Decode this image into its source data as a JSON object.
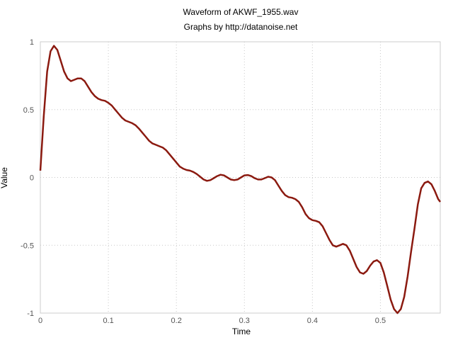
{
  "chart_data": {
    "type": "line",
    "title": "Waveform of AKWF_1955.wav",
    "subtitle": "Graphs by http://datanoise.net",
    "xlabel": "Time",
    "ylabel": "Value",
    "xlim": [
      0,
      0.588
    ],
    "ylim": [
      -1,
      1
    ],
    "x_ticks": [
      0,
      0.1,
      0.2,
      0.3,
      0.4,
      0.5
    ],
    "x_tick_labels": [
      "0",
      "0.1",
      "0.2",
      "0.3",
      "0.4",
      "0.5"
    ],
    "y_ticks": [
      1,
      0.5,
      0,
      -0.5,
      -1
    ],
    "y_tick_labels": [
      "1",
      "0.5",
      "0",
      "-0.5",
      "-1"
    ],
    "grid": true,
    "line_color": "#8b1a10",
    "series": [
      {
        "values": [
          [
            0,
            0.05
          ],
          [
            0.005,
            0.45
          ],
          [
            0.01,
            0.78
          ],
          [
            0.015,
            0.93
          ],
          [
            0.02,
            0.97
          ],
          [
            0.025,
            0.94
          ],
          [
            0.03,
            0.86
          ],
          [
            0.035,
            0.78
          ],
          [
            0.04,
            0.73
          ],
          [
            0.045,
            0.71
          ],
          [
            0.05,
            0.72
          ],
          [
            0.055,
            0.73
          ],
          [
            0.06,
            0.73
          ],
          [
            0.065,
            0.71
          ],
          [
            0.07,
            0.67
          ],
          [
            0.075,
            0.63
          ],
          [
            0.08,
            0.6
          ],
          [
            0.085,
            0.58
          ],
          [
            0.09,
            0.57
          ],
          [
            0.095,
            0.565
          ],
          [
            0.1,
            0.55
          ],
          [
            0.105,
            0.53
          ],
          [
            0.11,
            0.5
          ],
          [
            0.115,
            0.47
          ],
          [
            0.12,
            0.44
          ],
          [
            0.125,
            0.42
          ],
          [
            0.13,
            0.41
          ],
          [
            0.135,
            0.4
          ],
          [
            0.14,
            0.385
          ],
          [
            0.145,
            0.36
          ],
          [
            0.15,
            0.33
          ],
          [
            0.155,
            0.3
          ],
          [
            0.16,
            0.27
          ],
          [
            0.165,
            0.25
          ],
          [
            0.17,
            0.24
          ],
          [
            0.175,
            0.23
          ],
          [
            0.18,
            0.22
          ],
          [
            0.185,
            0.2
          ],
          [
            0.19,
            0.17
          ],
          [
            0.195,
            0.14
          ],
          [
            0.2,
            0.11
          ],
          [
            0.205,
            0.08
          ],
          [
            0.21,
            0.065
          ],
          [
            0.215,
            0.055
          ],
          [
            0.22,
            0.05
          ],
          [
            0.225,
            0.04
          ],
          [
            0.23,
            0.025
          ],
          [
            0.235,
            0.005
          ],
          [
            0.24,
            -0.015
          ],
          [
            0.245,
            -0.025
          ],
          [
            0.25,
            -0.02
          ],
          [
            0.255,
            -0.005
          ],
          [
            0.26,
            0.01
          ],
          [
            0.265,
            0.02
          ],
          [
            0.27,
            0.015
          ],
          [
            0.275,
            0.0
          ],
          [
            0.28,
            -0.015
          ],
          [
            0.285,
            -0.02
          ],
          [
            0.29,
            -0.015
          ],
          [
            0.295,
            0.0
          ],
          [
            0.3,
            0.015
          ],
          [
            0.305,
            0.018
          ],
          [
            0.31,
            0.01
          ],
          [
            0.315,
            -0.005
          ],
          [
            0.32,
            -0.015
          ],
          [
            0.325,
            -0.015
          ],
          [
            0.33,
            -0.005
          ],
          [
            0.335,
            0.005
          ],
          [
            0.34,
            0.0
          ],
          [
            0.345,
            -0.02
          ],
          [
            0.35,
            -0.06
          ],
          [
            0.355,
            -0.1
          ],
          [
            0.36,
            -0.13
          ],
          [
            0.365,
            -0.145
          ],
          [
            0.37,
            -0.15
          ],
          [
            0.375,
            -0.16
          ],
          [
            0.38,
            -0.18
          ],
          [
            0.385,
            -0.22
          ],
          [
            0.39,
            -0.27
          ],
          [
            0.395,
            -0.3
          ],
          [
            0.4,
            -0.315
          ],
          [
            0.405,
            -0.32
          ],
          [
            0.41,
            -0.33
          ],
          [
            0.415,
            -0.36
          ],
          [
            0.42,
            -0.41
          ],
          [
            0.425,
            -0.46
          ],
          [
            0.43,
            -0.5
          ],
          [
            0.435,
            -0.51
          ],
          [
            0.44,
            -0.5
          ],
          [
            0.445,
            -0.49
          ],
          [
            0.45,
            -0.5
          ],
          [
            0.455,
            -0.54
          ],
          [
            0.46,
            -0.6
          ],
          [
            0.465,
            -0.66
          ],
          [
            0.47,
            -0.7
          ],
          [
            0.475,
            -0.71
          ],
          [
            0.48,
            -0.69
          ],
          [
            0.485,
            -0.65
          ],
          [
            0.49,
            -0.62
          ],
          [
            0.495,
            -0.61
          ],
          [
            0.5,
            -0.63
          ],
          [
            0.505,
            -0.7
          ],
          [
            0.51,
            -0.8
          ],
          [
            0.515,
            -0.9
          ],
          [
            0.52,
            -0.97
          ],
          [
            0.525,
            -1.0
          ],
          [
            0.53,
            -0.97
          ],
          [
            0.535,
            -0.88
          ],
          [
            0.54,
            -0.73
          ],
          [
            0.545,
            -0.55
          ],
          [
            0.55,
            -0.38
          ],
          [
            0.555,
            -0.2
          ],
          [
            0.56,
            -0.08
          ],
          [
            0.565,
            -0.04
          ],
          [
            0.57,
            -0.03
          ],
          [
            0.575,
            -0.05
          ],
          [
            0.58,
            -0.1
          ],
          [
            0.585,
            -0.16
          ],
          [
            0.588,
            -0.18
          ]
        ]
      }
    ]
  }
}
